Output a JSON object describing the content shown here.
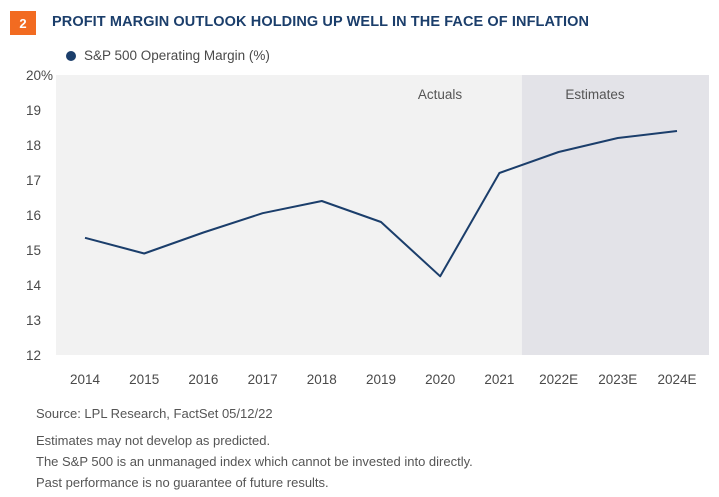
{
  "header": {
    "badge": "2",
    "title": "PROFIT MARGIN OUTLOOK HOLDING UP WELL IN THE FACE OF INFLATION"
  },
  "colors": {
    "line": "#1b3e6b",
    "actuals_bg": "#f2f2f2",
    "estimates_bg": "#e3e3e8",
    "badge": "#f26b21"
  },
  "chart_data": {
    "type": "line",
    "title": "PROFIT MARGIN OUTLOOK HOLDING UP WELL IN THE FACE OF INFLATION",
    "categories": [
      "2014",
      "2015",
      "2016",
      "2017",
      "2018",
      "2019",
      "2020",
      "2021",
      "2022E",
      "2023E",
      "2024E"
    ],
    "series": [
      {
        "name": "S&P 500 Operating Margin (%)",
        "values": [
          15.35,
          14.9,
          15.5,
          16.05,
          16.4,
          15.8,
          14.25,
          17.2,
          17.8,
          18.2,
          18.4
        ]
      }
    ],
    "ylim": [
      12,
      20
    ],
    "yticks": [
      "12",
      "13",
      "14",
      "15",
      "16",
      "17",
      "18",
      "19",
      "20%"
    ],
    "region_labels": {
      "actuals": "Actuals",
      "estimates": "Estimates"
    },
    "estimates_start_after": "2021",
    "grid": false,
    "legend": "top-left"
  },
  "notes": {
    "source": "Source: LPL Research, FactSet  05/12/22",
    "lines": [
      "Estimates may not develop as predicted.",
      "The S&P 500 is an unmanaged index which cannot be invested into directly.",
      "Past performance is no guarantee of future results."
    ]
  }
}
